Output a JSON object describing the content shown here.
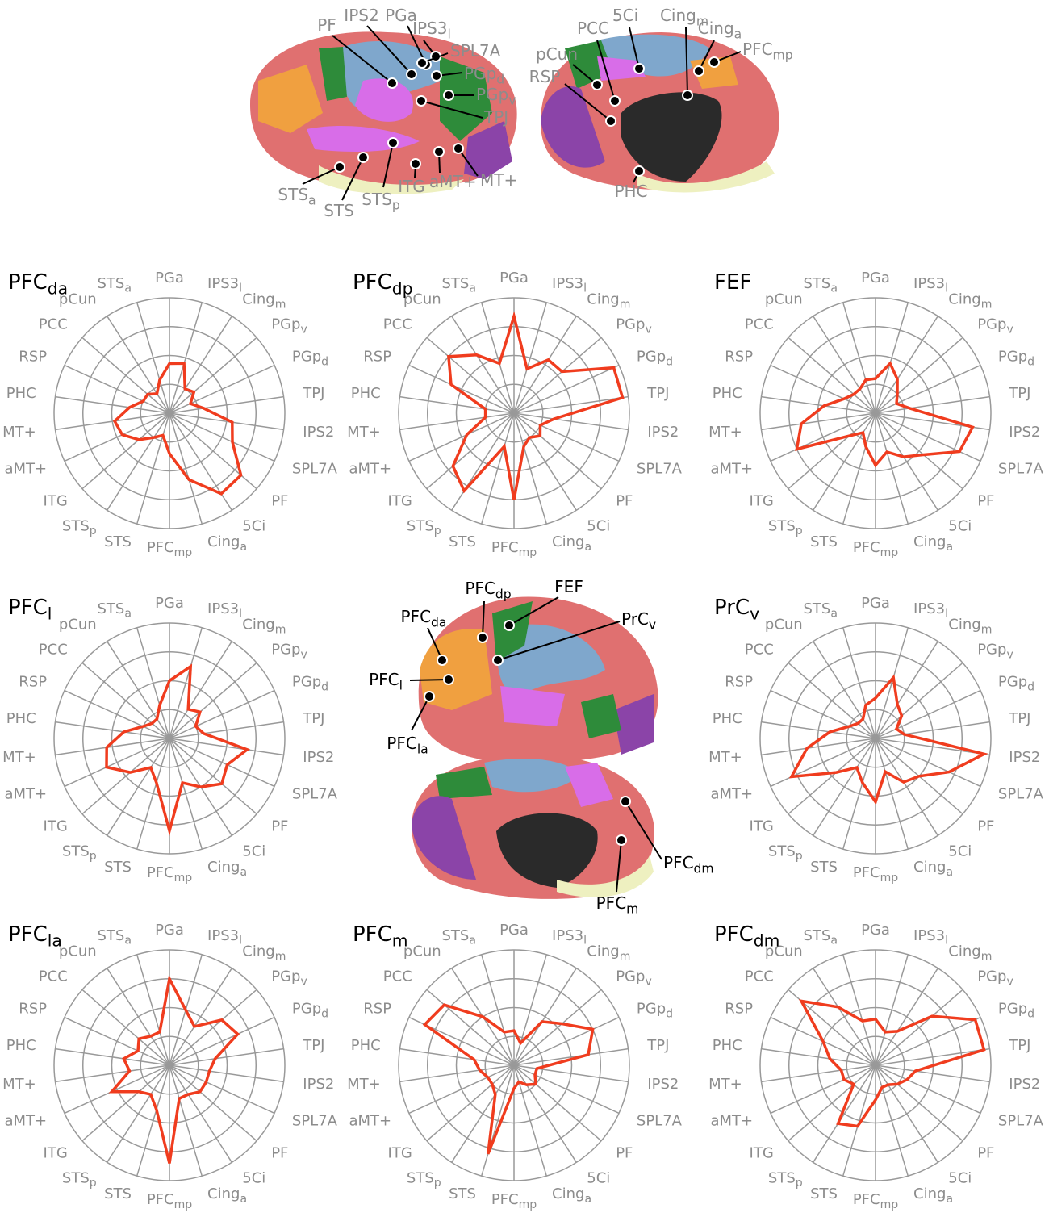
{
  "chart_data": [
    {
      "type": "radar",
      "title": [
        "PFC",
        "da"
      ],
      "categories": [
        [
          "PGa"
        ],
        [
          "IPS3",
          "l"
        ],
        [
          "Cing",
          "m"
        ],
        [
          "PGp",
          "v"
        ],
        [
          "PGp",
          "d"
        ],
        [
          "TPJ"
        ],
        [
          "IPS2"
        ],
        [
          "SPL7A"
        ],
        [
          "PF"
        ],
        [
          "5Ci"
        ],
        [
          "Cing",
          "a"
        ],
        [
          "PFC",
          "mp"
        ],
        [
          "STS"
        ],
        [
          "STS",
          "p"
        ],
        [
          "ITG"
        ],
        [
          "aMT+"
        ],
        [
          "MT+"
        ],
        [
          "PHC"
        ],
        [
          "RSP"
        ],
        [
          "PCC"
        ],
        [
          "pCun"
        ],
        [
          "STS",
          "a"
        ]
      ],
      "values": [
        0.43,
        0.45,
        0.25,
        0.28,
        0.2,
        0.3,
        0.55,
        0.6,
        0.82,
        0.83,
        0.6,
        0.35,
        0.2,
        0.25,
        0.35,
        0.45,
        0.48,
        0.35,
        0.25,
        0.25,
        0.2,
        0.3
      ],
      "color": "#f03c1e",
      "rlim": [
        0,
        1
      ],
      "rticks": [
        0.25,
        0.5,
        0.75,
        1
      ]
    },
    {
      "type": "radar",
      "title": [
        "PFC",
        "dp"
      ],
      "categories": [
        [
          "PGa"
        ],
        [
          "IPS3",
          "l"
        ],
        [
          "Cing",
          "m"
        ],
        [
          "PGp",
          "v"
        ],
        [
          "PGp",
          "d"
        ],
        [
          "TPJ"
        ],
        [
          "IPS2"
        ],
        [
          "SPL7A"
        ],
        [
          "PF"
        ],
        [
          "5Ci"
        ],
        [
          "Cing",
          "a"
        ],
        [
          "PFC",
          "mp"
        ],
        [
          "STS"
        ],
        [
          "STS",
          "p"
        ],
        [
          "ITG"
        ],
        [
          "aMT+"
        ],
        [
          "MT+"
        ],
        [
          "PHC"
        ],
        [
          "RSP"
        ],
        [
          "PCC"
        ],
        [
          "pCun"
        ],
        [
          "STS",
          "a"
        ]
      ],
      "values": [
        0.84,
        0.4,
        0.55,
        0.55,
        0.95,
        0.95,
        0.35,
        0.25,
        0.3,
        0.25,
        0.3,
        0.75,
        0.3,
        0.8,
        0.7,
        0.45,
        0.25,
        0.25,
        0.6,
        0.75,
        0.6,
        0.45
      ],
      "color": "#f03c1e",
      "rlim": [
        0,
        1
      ],
      "rticks": [
        0.25,
        0.5,
        0.75,
        1
      ]
    },
    {
      "type": "radar",
      "title": [
        "FEF"
      ],
      "categories": [
        [
          "PGa"
        ],
        [
          "IPS3",
          "l"
        ],
        [
          "Cing",
          "m"
        ],
        [
          "PGp",
          "v"
        ],
        [
          "PGp",
          "d"
        ],
        [
          "TPJ"
        ],
        [
          "IPS2"
        ],
        [
          "SPL7A"
        ],
        [
          "PF"
        ],
        [
          "5Ci"
        ],
        [
          "Cing",
          "a"
        ],
        [
          "PFC",
          "mp"
        ],
        [
          "STS"
        ],
        [
          "STS",
          "p"
        ],
        [
          "ITG"
        ],
        [
          "aMT+"
        ],
        [
          "MT+"
        ],
        [
          "PHC"
        ],
        [
          "RSP"
        ],
        [
          "PCC"
        ],
        [
          "pCun"
        ],
        [
          "STS",
          "a"
        ]
      ],
      "values": [
        0.3,
        0.45,
        0.35,
        0.25,
        0.2,
        0.3,
        0.85,
        0.8,
        0.55,
        0.45,
        0.35,
        0.45,
        0.3,
        0.2,
        0.3,
        0.75,
        0.65,
        0.45,
        0.3,
        0.25,
        0.25,
        0.3
      ],
      "color": "#f03c1e",
      "rlim": [
        0,
        1
      ],
      "rticks": [
        0.25,
        0.5,
        0.75,
        1
      ]
    },
    {
      "type": "radar",
      "title": [
        "PFC",
        "l"
      ],
      "categories": [
        [
          "PGa"
        ],
        [
          "IPS3",
          "l"
        ],
        [
          "Cing",
          "m"
        ],
        [
          "PGp",
          "v"
        ],
        [
          "PGp",
          "d"
        ],
        [
          "TPJ"
        ],
        [
          "IPS2"
        ],
        [
          "SPL7A"
        ],
        [
          "PF"
        ],
        [
          "5Ci"
        ],
        [
          "Cing",
          "a"
        ],
        [
          "PFC",
          "mp"
        ],
        [
          "STS"
        ],
        [
          "STS",
          "p"
        ],
        [
          "ITG"
        ],
        [
          "aMT+"
        ],
        [
          "MT+"
        ],
        [
          "PHC"
        ],
        [
          "RSP"
        ],
        [
          "PCC"
        ],
        [
          "pCun"
        ],
        [
          "STS",
          "a"
        ]
      ],
      "values": [
        0.5,
        0.65,
        0.3,
        0.35,
        0.25,
        0.3,
        0.68,
        0.55,
        0.6,
        0.5,
        0.4,
        0.8,
        0.4,
        0.3,
        0.45,
        0.6,
        0.55,
        0.4,
        0.25,
        0.2,
        0.2,
        0.3
      ],
      "color": "#f03c1e",
      "rlim": [
        0,
        1
      ],
      "rticks": [
        0.25,
        0.5,
        0.75,
        1
      ]
    },
    {
      "type": "radar",
      "title": [
        "PrC",
        "v"
      ],
      "categories": [
        [
          "PGa"
        ],
        [
          "IPS3",
          "l"
        ],
        [
          "Cing",
          "m"
        ],
        [
          "PGp",
          "v"
        ],
        [
          "PGp",
          "d"
        ],
        [
          "TPJ"
        ],
        [
          "IPS2"
        ],
        [
          "SPL7A"
        ],
        [
          "PF"
        ],
        [
          "5Ci"
        ],
        [
          "Cing",
          "a"
        ],
        [
          "PFC",
          "mp"
        ],
        [
          "STS"
        ],
        [
          "STS",
          "p"
        ],
        [
          "ITG"
        ],
        [
          "aMT+"
        ],
        [
          "MT+"
        ],
        [
          "PHC"
        ],
        [
          "RSP"
        ],
        [
          "PCC"
        ],
        [
          "pCun"
        ],
        [
          "STS",
          "a"
        ]
      ],
      "values": [
        0.35,
        0.55,
        0.35,
        0.3,
        0.2,
        0.25,
        0.95,
        0.7,
        0.5,
        0.45,
        0.3,
        0.55,
        0.4,
        0.3,
        0.45,
        0.8,
        0.6,
        0.4,
        0.25,
        0.2,
        0.2,
        0.3
      ],
      "color": "#f03c1e",
      "rlim": [
        0,
        1
      ],
      "rticks": [
        0.25,
        0.5,
        0.75,
        1
      ]
    },
    {
      "type": "radar",
      "title": [
        "PFC",
        "la"
      ],
      "categories": [
        [
          "PGa"
        ],
        [
          "IPS3",
          "l"
        ],
        [
          "Cing",
          "m"
        ],
        [
          "PGp",
          "v"
        ],
        [
          "PGp",
          "d"
        ],
        [
          "TPJ"
        ],
        [
          "IPS2"
        ],
        [
          "SPL7A"
        ],
        [
          "PF"
        ],
        [
          "5Ci"
        ],
        [
          "Cing",
          "a"
        ],
        [
          "PFC",
          "mp"
        ],
        [
          "STS"
        ],
        [
          "STS",
          "p"
        ],
        [
          "ITG"
        ],
        [
          "aMT+"
        ],
        [
          "MT+"
        ],
        [
          "PHC"
        ],
        [
          "RSP"
        ],
        [
          "PCC"
        ],
        [
          "pCun"
        ],
        [
          "STS",
          "a"
        ]
      ],
      "values": [
        0.75,
        0.5,
        0.4,
        0.6,
        0.65,
        0.4,
        0.35,
        0.35,
        0.35,
        0.3,
        0.3,
        0.85,
        0.4,
        0.3,
        0.35,
        0.55,
        0.35,
        0.4,
        0.3,
        0.35,
        0.3,
        0.3
      ],
      "color": "#f03c1e",
      "rlim": [
        0,
        1
      ],
      "rticks": [
        0.25,
        0.5,
        0.75,
        1
      ]
    },
    {
      "type": "radar",
      "title": [
        "PFC",
        "m"
      ],
      "categories": [
        [
          "PGa"
        ],
        [
          "IPS3",
          "l"
        ],
        [
          "Cing",
          "m"
        ],
        [
          "PGp",
          "v"
        ],
        [
          "PGp",
          "d"
        ],
        [
          "TPJ"
        ],
        [
          "IPS2"
        ],
        [
          "SPL7A"
        ],
        [
          "PF"
        ],
        [
          "5Ci"
        ],
        [
          "Cing",
          "a"
        ],
        [
          "PFC",
          "mp"
        ],
        [
          "STS"
        ],
        [
          "STS",
          "p"
        ],
        [
          "ITG"
        ],
        [
          "aMT+"
        ],
        [
          "MT+"
        ],
        [
          "PHC"
        ],
        [
          "RSP"
        ],
        [
          "PCC"
        ],
        [
          "pCun"
        ],
        [
          "STS",
          "a"
        ]
      ],
      "values": [
        0.3,
        0.2,
        0.45,
        0.55,
        0.75,
        0.65,
        0.2,
        0.2,
        0.25,
        0.2,
        0.15,
        0.2,
        0.8,
        0.3,
        0.25,
        0.25,
        0.3,
        0.35,
        0.85,
        0.8,
        0.5,
        0.3
      ],
      "color": "#f03c1e",
      "rlim": [
        0,
        1
      ],
      "rticks": [
        0.25,
        0.5,
        0.75,
        1
      ]
    },
    {
      "type": "radar",
      "title": [
        "PFC",
        "dm"
      ],
      "categories": [
        [
          "PGa"
        ],
        [
          "IPS3",
          "l"
        ],
        [
          "Cing",
          "m"
        ],
        [
          "PGp",
          "v"
        ],
        [
          "PGp",
          "d"
        ],
        [
          "TPJ"
        ],
        [
          "IPS2"
        ],
        [
          "SPL7A"
        ],
        [
          "PF"
        ],
        [
          "5Ci"
        ],
        [
          "Cing",
          "a"
        ],
        [
          "PFC",
          "mp"
        ],
        [
          "STS"
        ],
        [
          "STS",
          "p"
        ],
        [
          "ITG"
        ],
        [
          "aMT+"
        ],
        [
          "MT+"
        ],
        [
          "PHC"
        ],
        [
          "RSP"
        ],
        [
          "PCC"
        ],
        [
          "pCun"
        ],
        [
          "STS",
          "a"
        ]
      ],
      "values": [
        0.4,
        0.3,
        0.35,
        0.65,
        0.95,
        0.95,
        0.35,
        0.3,
        0.25,
        0.2,
        0.2,
        0.3,
        0.55,
        0.6,
        0.25,
        0.3,
        0.3,
        0.4,
        0.5,
        0.85,
        0.6,
        0.4
      ],
      "color": "#f03c1e",
      "rlim": [
        0,
        1
      ],
      "rticks": [
        0.25,
        0.5,
        0.75,
        1
      ]
    }
  ],
  "brain_top": {
    "labels": [
      [
        "PF"
      ],
      [
        "IPS2"
      ],
      [
        "PGa"
      ],
      [
        "IPS3",
        "l"
      ],
      [
        "SPL7A"
      ],
      [
        "PGp",
        "d"
      ],
      [
        "PGp",
        "v"
      ],
      [
        "TPJ"
      ],
      [
        "MT+"
      ],
      [
        "aMT+"
      ],
      [
        "ITG"
      ],
      [
        "STS",
        "p"
      ],
      [
        "STS"
      ],
      [
        "STS",
        "a"
      ],
      [
        "5Ci"
      ],
      [
        "PCC"
      ],
      [
        "Cing",
        "m"
      ],
      [
        "Cing",
        "a"
      ],
      [
        "PFC",
        "mp"
      ],
      [
        "pCun"
      ],
      [
        "RSP"
      ],
      [
        "PHC"
      ]
    ]
  },
  "brain_middle": {
    "labels": [
      [
        "PFC",
        "dp"
      ],
      [
        "FEF"
      ],
      [
        "PFC",
        "da"
      ],
      [
        "PrC",
        "v"
      ],
      [
        "PFC",
        "l"
      ],
      [
        "PFC",
        "la"
      ],
      [
        "PFC",
        "dm"
      ],
      [
        "PFC",
        "m"
      ]
    ]
  }
}
